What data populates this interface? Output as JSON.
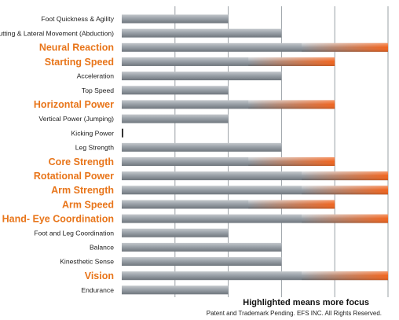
{
  "chart_data": {
    "type": "bar",
    "orientation": "horizontal",
    "title": "",
    "xlabel": "",
    "ylabel": "",
    "xlim": [
      0,
      5
    ],
    "grid": true,
    "colors": {
      "bar_base": "#8c939a",
      "bar_light": "#b9bec3",
      "highlight": "#f0641e",
      "grid": "#9aa0a6"
    },
    "categories": [
      "Foot Quickness & Agility",
      "Cutting & Lateral Movement (Abduction)",
      "Neural Reaction",
      "Starting Speed",
      "Acceleration",
      "Top Speed",
      "Horizontal Power",
      "Vertical Power (Jumping)",
      "Kicking Power",
      "Leg Strength",
      "Core Strength",
      "Rotational Power",
      "Arm Strength",
      "Arm Speed",
      "Hand- Eye Coordination",
      "Foot and Leg Coordination",
      "Balance",
      "Kinesthetic Sense",
      "Vision",
      "Endurance"
    ],
    "values": [
      2,
      3,
      5,
      4,
      3,
      2,
      4,
      2,
      0,
      3,
      4,
      5,
      5,
      4,
      5,
      2,
      3,
      3,
      5,
      2
    ],
    "highlighted": [
      false,
      false,
      true,
      true,
      false,
      false,
      true,
      false,
      false,
      false,
      true,
      true,
      true,
      true,
      true,
      false,
      false,
      false,
      true,
      false
    ]
  },
  "footer": {
    "note": "Highlighted means more focus",
    "legal": "Patent and Trademark Pending. EFS INC. All Rights Reserved."
  }
}
